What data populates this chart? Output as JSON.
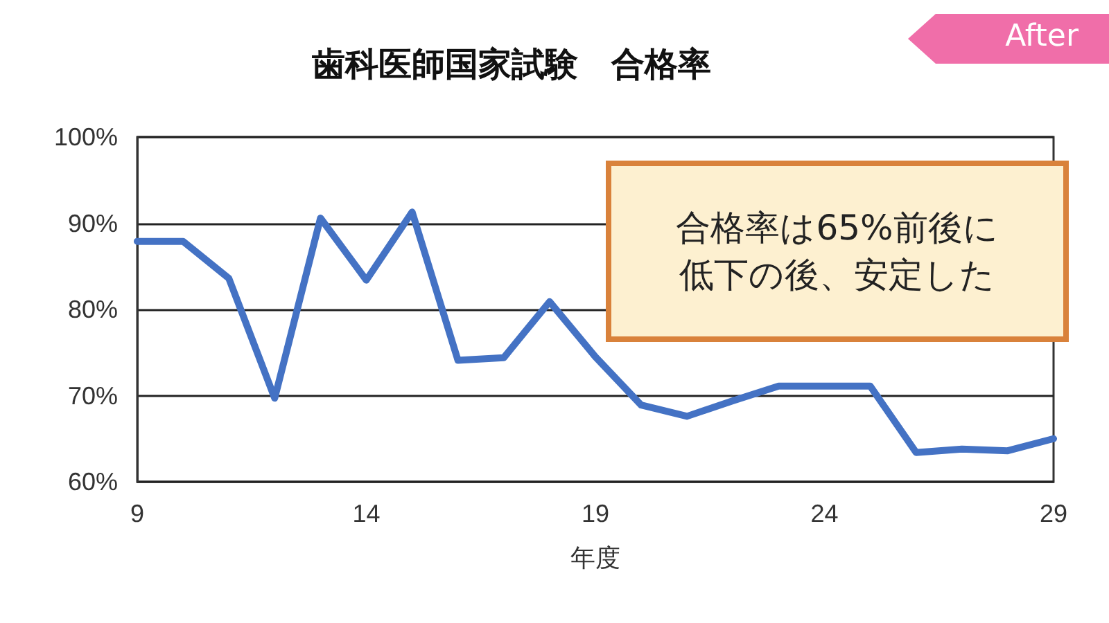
{
  "chart_data": {
    "type": "line",
    "title": "歯科医師国家試験　合格率",
    "xlabel": "年度",
    "x": [
      9,
      10,
      11,
      12,
      13,
      14,
      15,
      16,
      17,
      18,
      19,
      20,
      21,
      22,
      23,
      24,
      25,
      26,
      27,
      28,
      29
    ],
    "series": [
      {
        "color": "#4472c4",
        "values": [
          87.9,
          87.9,
          83.6,
          69.7,
          90.6,
          83.4,
          91.3,
          74.1,
          74.4,
          80.9,
          74.5,
          68.9,
          67.6,
          69.4,
          71.1,
          71.1,
          71.1,
          63.4,
          63.8,
          63.6,
          65.0
        ]
      }
    ],
    "xlim": [
      9,
      29
    ],
    "xticks": [
      9,
      14,
      19,
      24,
      29
    ],
    "ylim": [
      60,
      100
    ],
    "yticks": [
      {
        "value": 60,
        "label": "60%"
      },
      {
        "value": 70,
        "label": "70%"
      },
      {
        "value": 80,
        "label": "80%"
      },
      {
        "value": 90,
        "label": "90%"
      },
      {
        "value": 100,
        "label": "100%"
      }
    ],
    "grid": "y",
    "marker": "none",
    "line_style": "solid",
    "annotations": [
      "合格率は65%前後に低下の後、安定した",
      "After"
    ]
  }
}
